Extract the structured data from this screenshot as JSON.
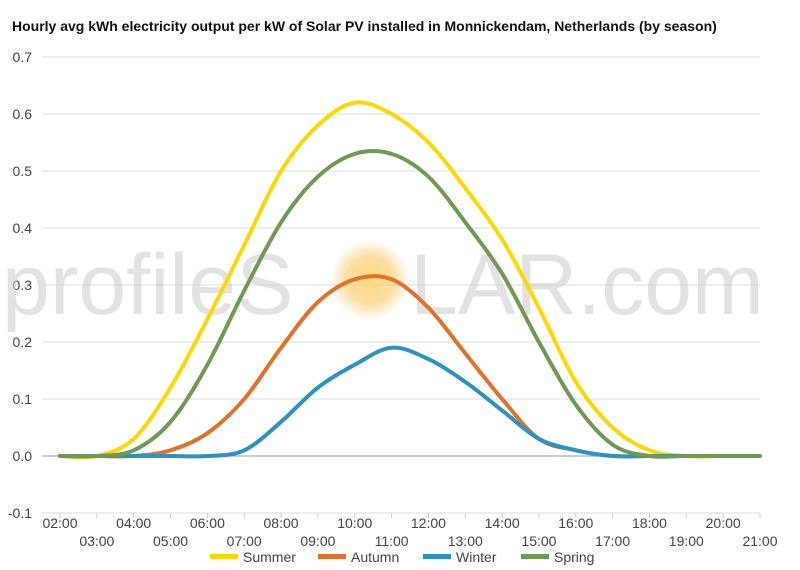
{
  "chart_data": {
    "type": "line",
    "title": "Hourly avg kWh electricity output per kW of Solar PV installed in Monnickendam, Netherlands (by season)",
    "xlabel": "",
    "ylabel": "",
    "ylim": [
      -0.1,
      0.7
    ],
    "yticks": [
      "-0.1",
      "0.0",
      "0.1",
      "0.2",
      "0.3",
      "0.4",
      "0.5",
      "0.6",
      "0.7"
    ],
    "xticks_upper": [
      "02:00",
      "04:00",
      "06:00",
      "08:00",
      "10:00",
      "12:00",
      "14:00",
      "16:00",
      "18:00",
      "20:00"
    ],
    "xticks_lower": [
      "03:00",
      "05:00",
      "07:00",
      "09:00",
      "11:00",
      "13:00",
      "15:00",
      "17:00",
      "19:00",
      "21:00"
    ],
    "x": [
      "02:00",
      "03:00",
      "04:00",
      "05:00",
      "06:00",
      "07:00",
      "08:00",
      "09:00",
      "10:00",
      "11:00",
      "12:00",
      "13:00",
      "14:00",
      "15:00",
      "16:00",
      "17:00",
      "18:00",
      "19:00",
      "20:00",
      "21:00"
    ],
    "grid": true,
    "legend": "bottom",
    "series": [
      {
        "name": "Summer",
        "color": "#FFD700",
        "values": [
          0.0,
          0.0,
          0.03,
          0.12,
          0.24,
          0.37,
          0.5,
          0.58,
          0.62,
          0.6,
          0.55,
          0.47,
          0.38,
          0.26,
          0.13,
          0.05,
          0.01,
          0.0,
          0.0,
          0.0
        ]
      },
      {
        "name": "Autumn",
        "color": "#E2722A",
        "values": [
          0.0,
          0.0,
          0.0,
          0.01,
          0.04,
          0.1,
          0.19,
          0.27,
          0.31,
          0.31,
          0.26,
          0.18,
          0.1,
          0.03,
          0.01,
          0.0,
          0.0,
          0.0,
          0.0,
          0.0
        ]
      },
      {
        "name": "Winter",
        "color": "#2A93C2",
        "values": [
          0.0,
          0.0,
          0.0,
          0.0,
          0.0,
          0.01,
          0.06,
          0.12,
          0.16,
          0.19,
          0.17,
          0.13,
          0.08,
          0.03,
          0.01,
          0.0,
          0.0,
          0.0,
          0.0,
          0.0
        ]
      },
      {
        "name": "Spring",
        "color": "#6E9A53",
        "values": [
          0.0,
          0.0,
          0.01,
          0.06,
          0.16,
          0.29,
          0.41,
          0.49,
          0.53,
          0.53,
          0.49,
          0.41,
          0.32,
          0.2,
          0.09,
          0.02,
          0.0,
          0.0,
          0.0,
          0.0
        ]
      }
    ]
  },
  "watermark": {
    "left": "profileS",
    "right": "LAR.com",
    "sun_color": "#F5C14A"
  }
}
